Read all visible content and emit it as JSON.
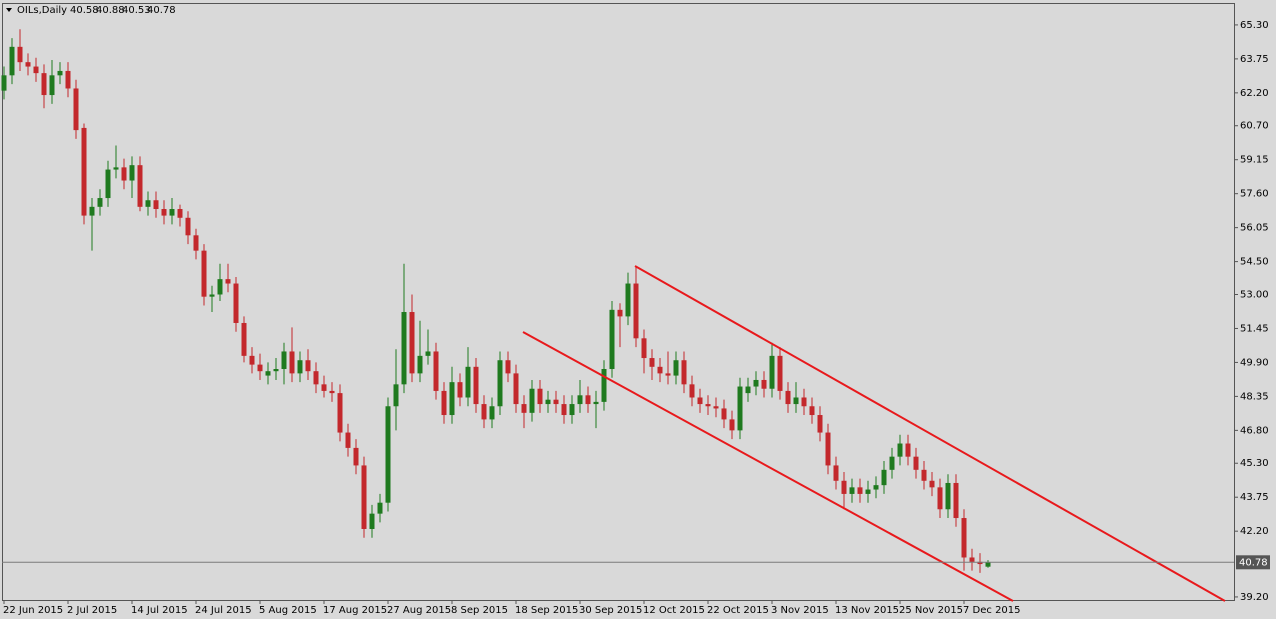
{
  "chart_data": {
    "type": "candlestick",
    "title": "OILs,Daily",
    "categories": [
      "22 Jun 2015",
      null,
      null,
      null,
      null,
      null,
      null,
      null,
      "2 Jul 2015",
      null,
      null,
      null,
      null,
      null,
      null,
      null,
      "14 Jul 2015",
      null,
      null,
      null,
      null,
      null,
      null,
      null,
      "24 Jul 2015",
      null,
      null,
      null,
      null,
      null,
      null,
      null,
      "5 Aug 2015",
      null,
      null,
      null,
      null,
      null,
      null,
      null,
      "17 Aug 2015",
      null,
      null,
      null,
      null,
      null,
      null,
      null,
      "27 Aug 2015",
      null,
      null,
      null,
      null,
      null,
      null,
      null,
      "8 Sep 2015",
      null,
      null,
      null,
      null,
      null,
      null,
      null,
      "18 Sep 2015",
      null,
      null,
      null,
      null,
      null,
      null,
      null,
      "30 Sep 2015",
      null,
      null,
      null,
      null,
      null,
      null,
      null,
      "12 Oct 2015",
      null,
      null,
      null,
      null,
      null,
      null,
      null,
      "22 Oct 2015",
      null,
      null,
      null,
      null,
      null,
      null,
      null,
      "3 Nov 2015",
      null,
      null,
      null,
      null,
      null,
      null,
      null,
      "13 Nov 2015",
      null,
      null,
      null,
      null,
      null,
      null,
      null,
      "25 Nov 2015",
      null,
      null,
      null,
      null,
      null,
      null,
      null,
      "7 Dec 2015",
      null,
      null,
      null
    ],
    "open": [
      62.3,
      63.0,
      64.3,
      63.6,
      63.4,
      63.1,
      62.1,
      63.0,
      63.2,
      62.4,
      60.6,
      56.6,
      57.0,
      57.4,
      58.7,
      58.8,
      58.2,
      58.9,
      57.0,
      57.3,
      56.9,
      56.6,
      56.9,
      56.5,
      55.7,
      55.0,
      52.9,
      53.0,
      53.7,
      53.5,
      51.7,
      50.2,
      49.8,
      49.3,
      49.5,
      49.6,
      50.4,
      49.4,
      50.0,
      49.5,
      48.9,
      48.6,
      48.5,
      46.7,
      46.0,
      45.2,
      42.3,
      43.0,
      43.5,
      47.9,
      48.9,
      52.2,
      49.4,
      50.2,
      50.4,
      48.6,
      47.5,
      49.0,
      48.3,
      49.7,
      48.0,
      47.3,
      47.9,
      50.0,
      49.4,
      48.0,
      47.6,
      48.7,
      48.0,
      48.2,
      48.0,
      47.5,
      48.0,
      48.4,
      48.0,
      48.1,
      49.6,
      52.3,
      52.0,
      53.5,
      51.0,
      50.1,
      49.7,
      49.4,
      49.3,
      50.0,
      48.9,
      48.3,
      48.0,
      47.9,
      47.8,
      47.3,
      46.8,
      48.5,
      48.8,
      49.1,
      48.7,
      50.2,
      48.6,
      48.0,
      48.3,
      47.9,
      47.5,
      46.7,
      45.2,
      44.5,
      43.9,
      44.2,
      43.9,
      44.1,
      44.3,
      45.0,
      45.6,
      46.2,
      45.6,
      45.0,
      44.5,
      44.2,
      43.2,
      44.4,
      42.8,
      41.0,
      40.8,
      40.58
    ],
    "high": [
      63.4,
      64.7,
      65.1,
      64.0,
      63.8,
      63.5,
      63.7,
      63.6,
      63.6,
      62.8,
      60.8,
      57.4,
      57.8,
      59.1,
      59.8,
      59.2,
      59.3,
      59.3,
      57.7,
      57.7,
      57.3,
      57.4,
      57.1,
      56.8,
      56.0,
      55.3,
      53.4,
      54.4,
      54.4,
      53.8,
      52.0,
      50.6,
      50.3,
      49.9,
      50.1,
      50.8,
      51.5,
      50.4,
      50.5,
      49.9,
      49.3,
      49.0,
      48.9,
      47.1,
      46.4,
      45.6,
      43.4,
      43.9,
      48.3,
      50.5,
      54.4,
      53.0,
      51.8,
      51.4,
      50.8,
      49.0,
      49.7,
      49.4,
      50.6,
      50.1,
      48.4,
      48.3,
      50.4,
      50.4,
      49.8,
      48.4,
      49.1,
      49.1,
      48.6,
      48.6,
      48.4,
      48.4,
      49.1,
      48.8,
      48.6,
      50.0,
      52.7,
      52.6,
      54.0,
      54.3,
      51.4,
      50.5,
      50.1,
      50.4,
      50.4,
      50.4,
      49.3,
      48.7,
      48.4,
      48.3,
      48.2,
      47.7,
      49.2,
      49.2,
      49.5,
      49.5,
      50.8,
      50.6,
      49.0,
      49.0,
      48.7,
      48.3,
      47.9,
      47.1,
      45.6,
      44.9,
      44.6,
      44.6,
      44.5,
      44.7,
      45.4,
      46.0,
      46.6,
      46.6,
      46.0,
      45.4,
      44.9,
      44.6,
      44.8,
      44.8,
      43.2,
      41.4,
      41.2,
      40.88
    ],
    "low": [
      61.9,
      62.6,
      63.2,
      63.0,
      62.7,
      61.5,
      61.7,
      62.6,
      62.0,
      60.1,
      56.2,
      55.0,
      56.6,
      57.0,
      58.3,
      57.8,
      57.4,
      56.8,
      56.6,
      56.5,
      56.2,
      56.2,
      56.1,
      55.3,
      54.6,
      52.5,
      52.2,
      52.7,
      53.1,
      51.3,
      49.9,
      49.4,
      49.1,
      48.9,
      49.1,
      48.9,
      49.0,
      49.0,
      49.1,
      48.5,
      48.3,
      48.1,
      46.3,
      45.6,
      44.8,
      41.9,
      41.9,
      42.6,
      43.1,
      46.8,
      48.5,
      49.0,
      49.0,
      49.8,
      48.2,
      47.1,
      47.1,
      47.9,
      47.9,
      47.6,
      46.9,
      46.9,
      47.5,
      49.0,
      47.6,
      46.9,
      47.2,
      47.6,
      47.6,
      47.6,
      47.1,
      47.1,
      47.6,
      47.6,
      46.9,
      47.7,
      49.2,
      50.6,
      51.6,
      50.6,
      49.4,
      49.1,
      49.0,
      48.9,
      48.9,
      48.5,
      47.9,
      47.6,
      47.5,
      47.4,
      46.9,
      46.4,
      46.4,
      48.1,
      48.4,
      48.3,
      48.3,
      48.2,
      47.6,
      47.6,
      47.5,
      47.1,
      46.3,
      44.8,
      44.1,
      43.2,
      43.5,
      43.5,
      43.5,
      43.7,
      43.9,
      44.6,
      45.2,
      45.2,
      44.6,
      44.1,
      43.8,
      42.8,
      42.8,
      42.4,
      40.4,
      40.4,
      40.3,
      40.53
    ],
    "close": [
      63.0,
      64.3,
      63.6,
      63.4,
      63.1,
      62.1,
      63.0,
      63.2,
      62.4,
      60.5,
      56.6,
      57.0,
      57.4,
      58.7,
      58.8,
      58.2,
      58.9,
      57.0,
      57.3,
      56.9,
      56.6,
      56.9,
      56.5,
      55.7,
      55.0,
      52.9,
      53.0,
      53.7,
      53.5,
      51.7,
      50.2,
      49.8,
      49.5,
      49.5,
      49.6,
      50.4,
      49.4,
      50.0,
      49.5,
      48.9,
      48.6,
      48.5,
      46.7,
      46.0,
      45.2,
      42.3,
      43.0,
      43.5,
      47.9,
      48.9,
      52.2,
      49.4,
      50.2,
      50.4,
      48.6,
      47.5,
      49.0,
      48.3,
      49.7,
      48.0,
      47.3,
      47.9,
      50.0,
      49.4,
      48.0,
      47.6,
      48.7,
      48.0,
      48.2,
      48.0,
      47.5,
      48.0,
      48.4,
      48.0,
      48.1,
      49.6,
      52.3,
      52.0,
      53.5,
      51.0,
      50.1,
      49.7,
      49.4,
      49.3,
      50.0,
      48.9,
      48.3,
      48.0,
      47.9,
      47.8,
      47.3,
      46.8,
      48.8,
      48.8,
      49.1,
      48.7,
      50.2,
      48.6,
      48.0,
      48.3,
      47.9,
      47.5,
      46.7,
      45.2,
      44.5,
      43.9,
      44.2,
      43.9,
      44.1,
      44.3,
      45.0,
      45.6,
      46.2,
      45.6,
      45.0,
      44.5,
      44.2,
      43.2,
      44.4,
      42.8,
      41.0,
      40.8,
      40.7,
      40.78
    ],
    "up_color": "#1f7a1f",
    "down_color": "#c3282c",
    "ylim": [
      39.06,
      66.3
    ],
    "yticks": [
      {
        "value": 65.3,
        "label": "65.30"
      },
      63.75,
      {
        "value": 62.2,
        "label": "62.20"
      },
      {
        "value": 60.7,
        "label": "60.70"
      },
      59.15,
      {
        "value": 57.6,
        "label": "57.60"
      },
      56.05,
      {
        "value": 54.5,
        "label": "54.50"
      },
      {
        "value": 53.0,
        "label": "53.00"
      },
      51.45,
      {
        "value": 49.9,
        "label": "49.90"
      },
      48.35,
      {
        "value": 46.8,
        "label": "46.80"
      },
      {
        "value": 45.3,
        "label": "45.30"
      },
      43.75,
      {
        "value": 42.2,
        "label": "42.20"
      },
      {
        "value": 39.2,
        "label": "39.20"
      }
    ],
    "grid": false
  }
}
